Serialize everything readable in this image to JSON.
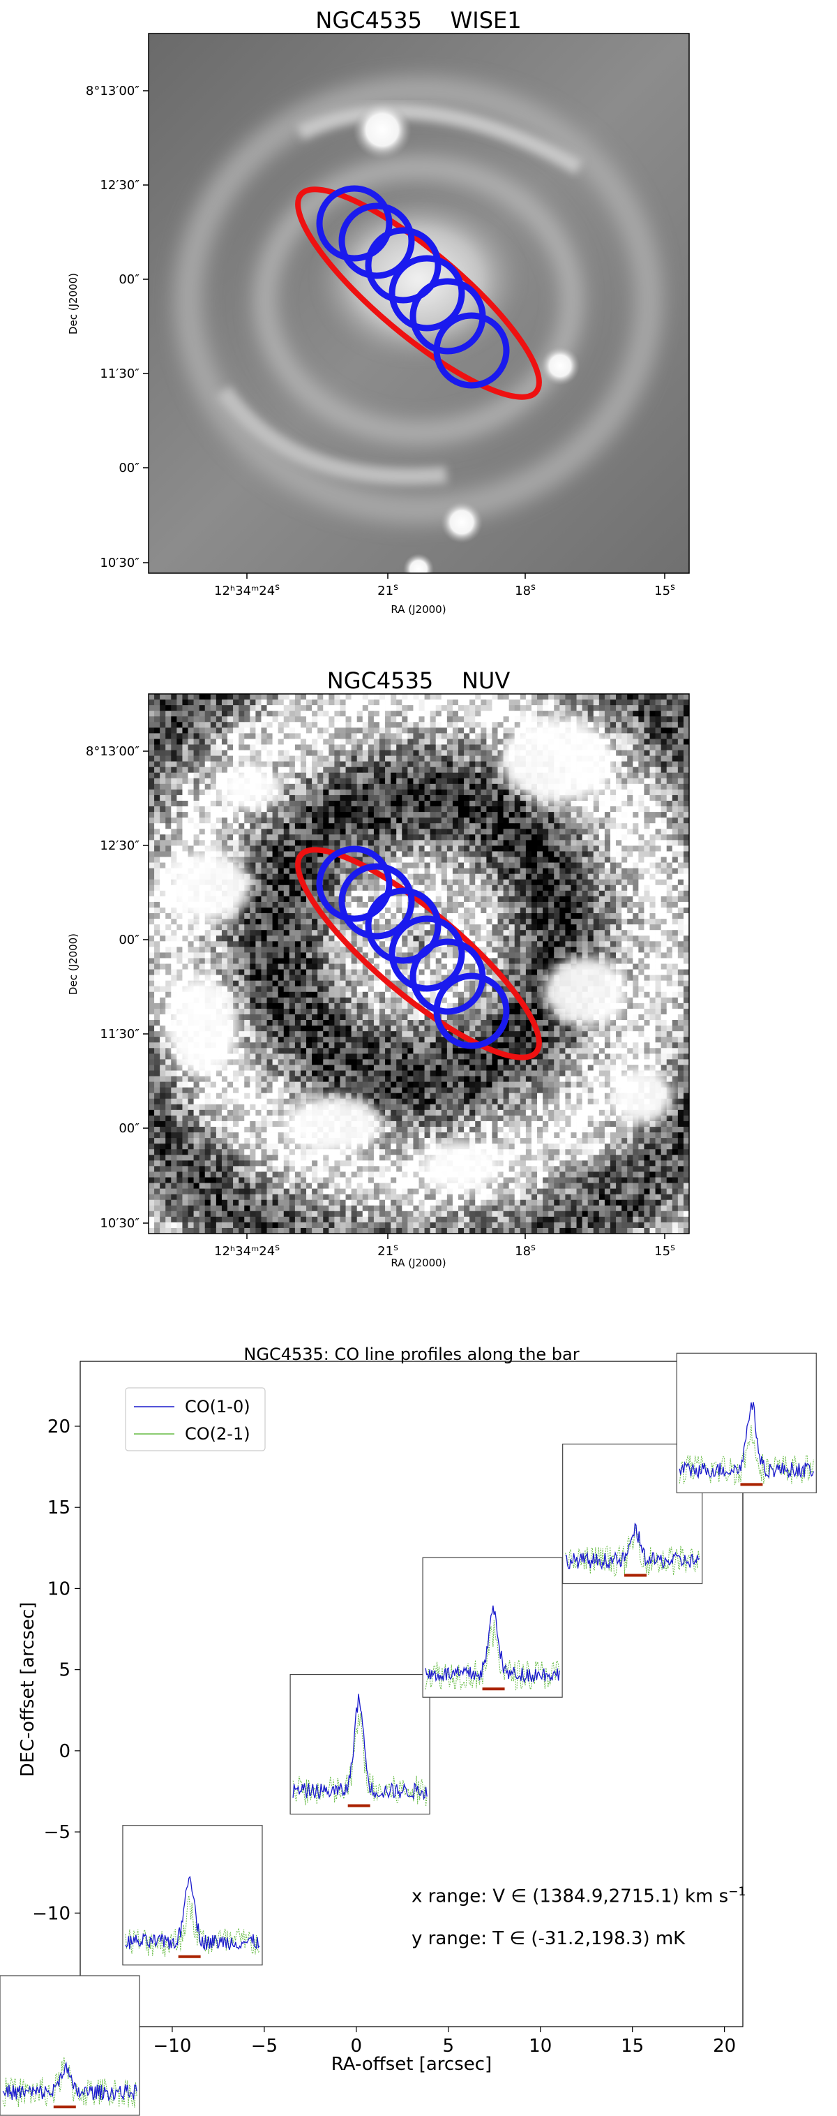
{
  "figure": {
    "panels": [
      {
        "id": "wise1",
        "title": "NGC4535    WISE1",
        "xlabel": "RA (J2000)",
        "ylabel": "Dec (J2000)",
        "xticks": [
          {
            "main": "12ʰ34ᵐ24",
            "sup": "s"
          },
          {
            "main": "21",
            "sup": "s"
          },
          {
            "main": "18",
            "sup": "s"
          },
          {
            "main": "15",
            "sup": "s"
          }
        ],
        "yticks": [
          "8°13′00″",
          "12′30″",
          "00″",
          "11′30″",
          "00″",
          "10′30″"
        ]
      },
      {
        "id": "nuv",
        "title": "NGC4535    NUV",
        "xlabel": "RA (J2000)",
        "ylabel": "Dec (J2000)",
        "xticks": [
          {
            "main": "12ʰ34ᵐ24",
            "sup": "s"
          },
          {
            "main": "21",
            "sup": "s"
          },
          {
            "main": "18",
            "sup": "s"
          },
          {
            "main": "15",
            "sup": "s"
          }
        ],
        "yticks": [
          "8°13′00″",
          "12′30″",
          "00″",
          "11′30″",
          "00″",
          "10′30″"
        ]
      }
    ],
    "colors": {
      "ellipse": "#ee1111",
      "beams": "#1a1aee",
      "co10": "#1a1acc",
      "co21": "#66bb44",
      "marker": "#aa2200"
    }
  },
  "chart_data": [
    {
      "type": "image",
      "title": "NGC4535    WISE1",
      "xlabel": "RA (J2000)",
      "ylabel": "Dec (J2000)",
      "xticks": [
        "12h34m24s",
        "21s",
        "18s",
        "15s"
      ],
      "yticks": [
        "8°13'00\"",
        "12'30\"",
        "00\"",
        "11'30\"",
        "00\"",
        "10'30\""
      ],
      "overlays": {
        "bar_ellipse": 1,
        "beam_circles": 6
      }
    },
    {
      "type": "image",
      "title": "NGC4535    NUV",
      "xlabel": "RA (J2000)",
      "ylabel": "Dec (J2000)",
      "xticks": [
        "12h34m24s",
        "21s",
        "18s",
        "15s"
      ],
      "yticks": [
        "8°13'00\"",
        "12'30\"",
        "00\"",
        "11'30\"",
        "00\"",
        "10'30\""
      ],
      "overlays": {
        "bar_ellipse": 1,
        "beam_circles": 6
      }
    },
    {
      "type": "scatter",
      "title": "NGC4535: CO line profiles along the bar",
      "xlabel": "RA-offset [arcsec]",
      "ylabel": "DEC-offset [arcsec]",
      "xlim": [
        -15,
        21
      ],
      "ylim": [
        -17,
        24
      ],
      "xticks": [
        -10,
        -5,
        0,
        5,
        10,
        15,
        20
      ],
      "yticks": [
        -10,
        -5,
        0,
        5,
        10,
        15,
        20
      ],
      "legend": {
        "position": "top-left",
        "entries": [
          "CO(1-0)",
          "CO(2-1)"
        ]
      },
      "x_range_text": "x range: V ∈ (1384.9,2715.1) km s",
      "x_range_sup": "−1",
      "y_range_text": "y range: T ∈ (-31.2,198.3) mK",
      "series": [
        {
          "name": "CO(1-0)",
          "x": [
            -15.8,
            -8.9,
            0.2,
            7.4,
            15.0,
            21.2
          ],
          "y": [
            -18.4,
            -8.9,
            0.4,
            7.6,
            14.6,
            20.2
          ],
          "peak_mK": [
            45,
            120,
            162,
            114,
            53,
            116
          ]
        },
        {
          "name": "CO(2-1)",
          "x": [
            -15.8,
            -8.9,
            0.2,
            7.4,
            15.0,
            21.2
          ],
          "y": [
            -18.4,
            -8.9,
            0.4,
            7.6,
            14.6,
            20.2
          ],
          "peak_mK": [
            40,
            58,
            120,
            70,
            45,
            62
          ]
        }
      ]
    }
  ]
}
